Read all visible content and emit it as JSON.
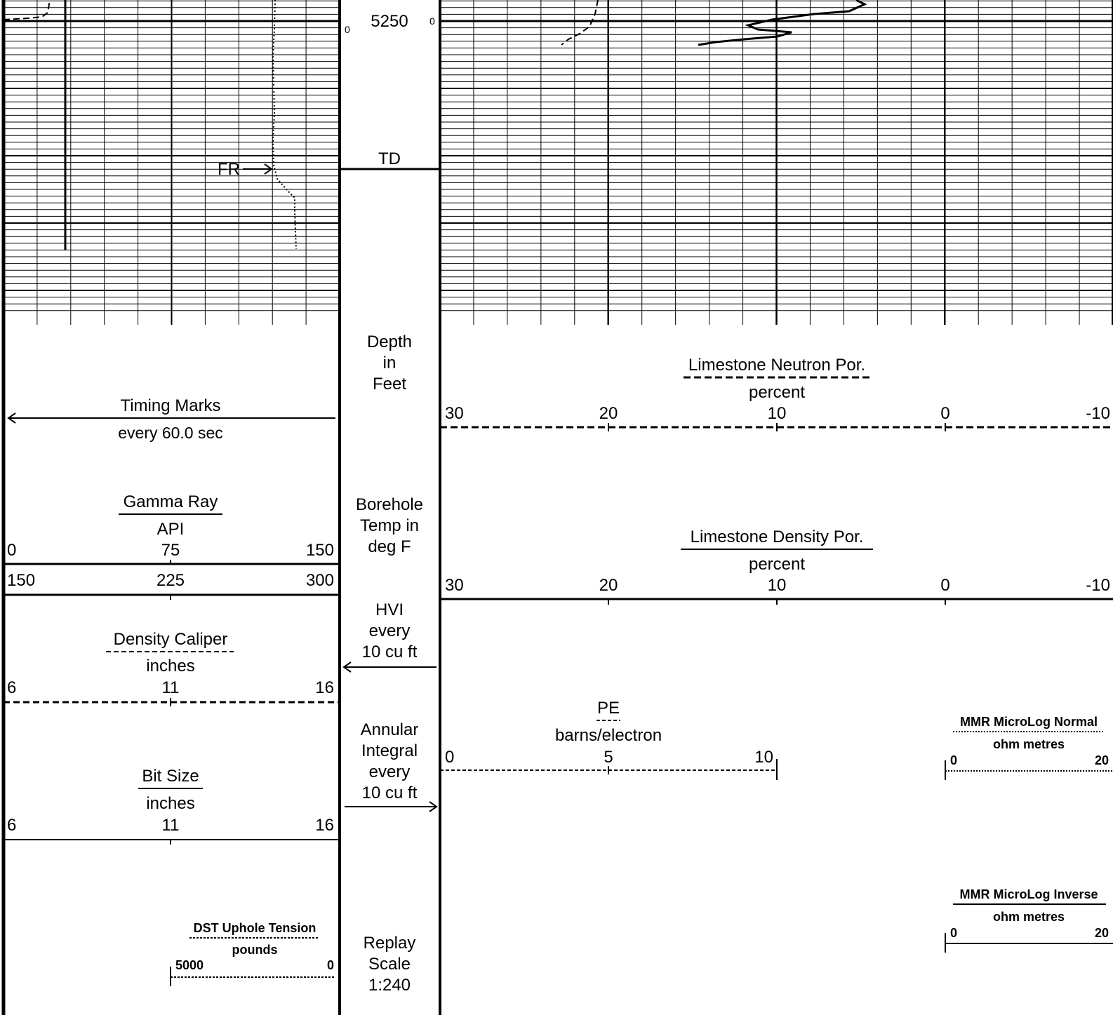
{
  "depth_track": {
    "depth_label": "5250",
    "td_label": "TD",
    "zero_left": "0",
    "zero_right": "0",
    "depth_unit": [
      "Depth",
      "in",
      "Feet"
    ],
    "borehole_temp": [
      "Borehole",
      "Temp in",
      "deg F"
    ],
    "hvi": [
      "HVI",
      "every",
      "10 cu ft"
    ],
    "annular": [
      "Annular",
      "Integral",
      "every",
      "10 cu ft"
    ],
    "replay": [
      "Replay",
      "Scale",
      "1:240"
    ]
  },
  "annotations": {
    "fr_marker": "FR"
  },
  "left_track": {
    "timing": {
      "title": "Timing Marks",
      "subtitle": "every 60.0 sec"
    },
    "gamma_ray": {
      "title": "Gamma Ray",
      "unit": "API",
      "ticks": [
        "0",
        "75",
        "150"
      ],
      "backup_ticks": [
        "150",
        "225",
        "300"
      ]
    },
    "density_caliper": {
      "title": "Density Caliper",
      "unit": "inches",
      "ticks": [
        "6",
        "11",
        "16"
      ]
    },
    "bit_size": {
      "title": "Bit Size",
      "unit": "inches",
      "ticks": [
        "6",
        "11",
        "16"
      ]
    },
    "dst_tension": {
      "title": "DST Uphole Tension",
      "unit": "pounds",
      "ticks": [
        "5000",
        "0"
      ]
    }
  },
  "right_track": {
    "neutron": {
      "title": "Limestone Neutron Por.",
      "unit": "percent",
      "ticks": [
        "30",
        "20",
        "10",
        "0",
        "-10"
      ]
    },
    "density": {
      "title": "Limestone Density Por.",
      "unit": "percent",
      "ticks": [
        "30",
        "20",
        "10",
        "0",
        "-10"
      ]
    },
    "pe": {
      "title": "PE",
      "unit": "barns/electron",
      "ticks": [
        "0",
        "5",
        "10"
      ]
    },
    "micro_normal": {
      "title": "MMR MicroLog Normal",
      "unit": "ohm metres",
      "ticks": [
        "0",
        "20"
      ]
    },
    "micro_inverse": {
      "title": "MMR MicroLog Inverse",
      "unit": "ohm metres",
      "ticks": [
        "0",
        "20"
      ]
    }
  }
}
